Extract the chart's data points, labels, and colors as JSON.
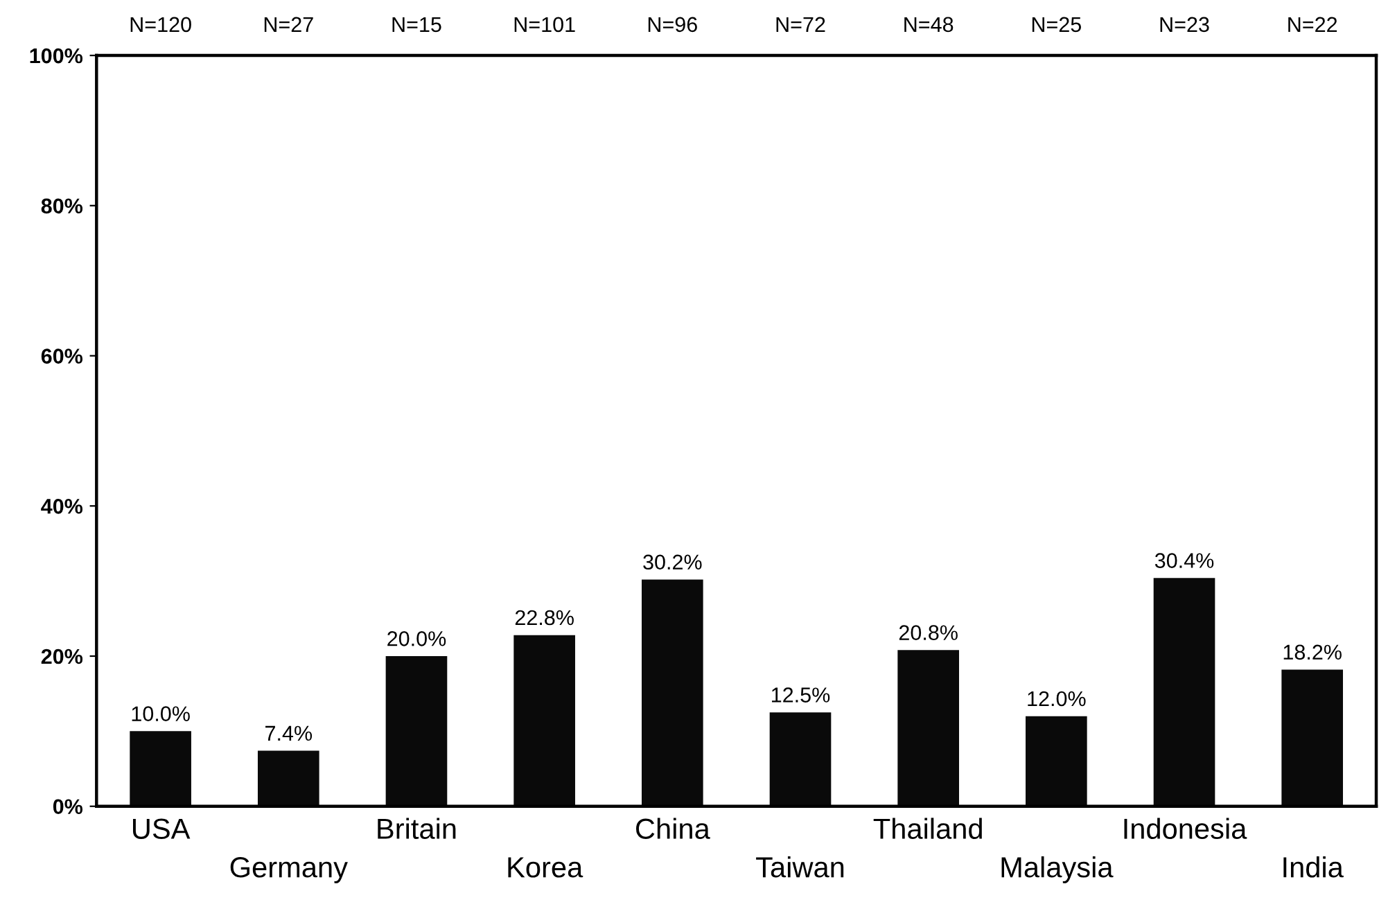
{
  "chart_data": {
    "type": "bar",
    "categories": [
      "USA",
      "Germany",
      "Britain",
      "Korea",
      "China",
      "Taiwan",
      "Thailand",
      "Malaysia",
      "Indonesia",
      "India"
    ],
    "values": [
      10.0,
      7.4,
      20.0,
      22.8,
      30.2,
      12.5,
      20.8,
      12.0,
      30.4,
      18.2
    ],
    "value_labels": [
      "10.0%",
      "7.4%",
      "20.0%",
      "22.8%",
      "30.2%",
      "12.5%",
      "20.8%",
      "12.0%",
      "30.4%",
      "18.2%"
    ],
    "color": "#0a0a0a",
    "annotations": [
      "N=120",
      "N=27",
      "N=15",
      "N=101",
      "N=96",
      "N=72",
      "N=48",
      "N=25",
      "N=23",
      "N=22"
    ],
    "ylim": [
      0,
      100
    ],
    "yticks": [
      {
        "value": 0,
        "label": "0%"
      },
      {
        "value": 20,
        "label": "20%"
      },
      {
        "value": 40,
        "label": "40%"
      },
      {
        "value": 60,
        "label": "60%"
      },
      {
        "value": 80,
        "label": "80%"
      },
      {
        "value": 100,
        "label": "100%"
      }
    ],
    "grid": false
  }
}
